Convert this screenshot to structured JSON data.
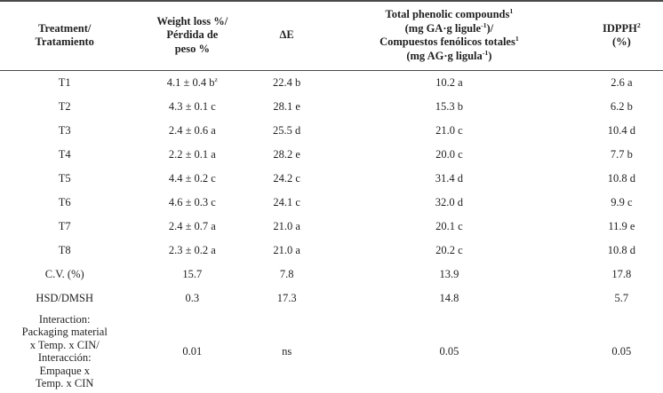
{
  "page": {
    "background": "#ffffff",
    "text_color": "#1f1f1f",
    "rule_color": "#4a4a4a"
  },
  "table": {
    "headers": [
      "Treatment/\nTratamiento",
      "Weight loss %/\nPérdida de\npeso %",
      "ΔE",
      "Total phenolic compounds^{1}\n(mg GA·g ligule^{-1})/\nCompuestos fenólicos totales^{1}\n(mg AG·g ligula^{-1})",
      "IDPPH^{2}\n(%)"
    ],
    "rows": [
      {
        "cells": [
          "T1",
          "4.1 ± 0.4 b^{z}",
          "22.4 b",
          "10.2 a",
          "2.6 a"
        ]
      },
      {
        "cells": [
          "T2",
          "4.3 ± 0.1 c",
          "28.1 e",
          "15.3 b",
          "6.2 b"
        ]
      },
      {
        "cells": [
          "T3",
          "2.4 ± 0.6 a",
          "25.5 d",
          "21.0 c",
          "10.4 d"
        ]
      },
      {
        "cells": [
          "T4",
          "2.2 ± 0.1 a",
          "28.2 e",
          "20.0 c",
          "7.7 b"
        ]
      },
      {
        "cells": [
          "T5",
          "4.4 ± 0.2 c",
          "24.2 c",
          "31.4 d",
          "10.8 d"
        ]
      },
      {
        "cells": [
          "T6",
          "4.6 ± 0.3 c",
          "24.1 c",
          "32.0 d",
          "9.9 c"
        ]
      },
      {
        "cells": [
          "T7",
          "2.4 ± 0.7 a",
          "21.0 a",
          "20.1 c",
          "11.9 e"
        ]
      },
      {
        "cells": [
          "T8",
          "2.3 ± 0.2 a",
          "21.0 a",
          "20.2 c",
          "10.8 d"
        ]
      },
      {
        "cells": [
          "C.V. (%)",
          "15.7",
          "7.8",
          "13.9",
          "17.8"
        ]
      },
      {
        "cells": [
          "HSD/DMSH",
          "0.3",
          "17.3",
          "14.8",
          "5.7"
        ]
      },
      {
        "cells": [
          "Interaction:\nPackaging material\nx Temp. x CIN/\nInteracción:\nEmpaque x\nTemp. x CIN",
          "0.01",
          "ns",
          "0.05",
          "0.05"
        ]
      }
    ]
  }
}
